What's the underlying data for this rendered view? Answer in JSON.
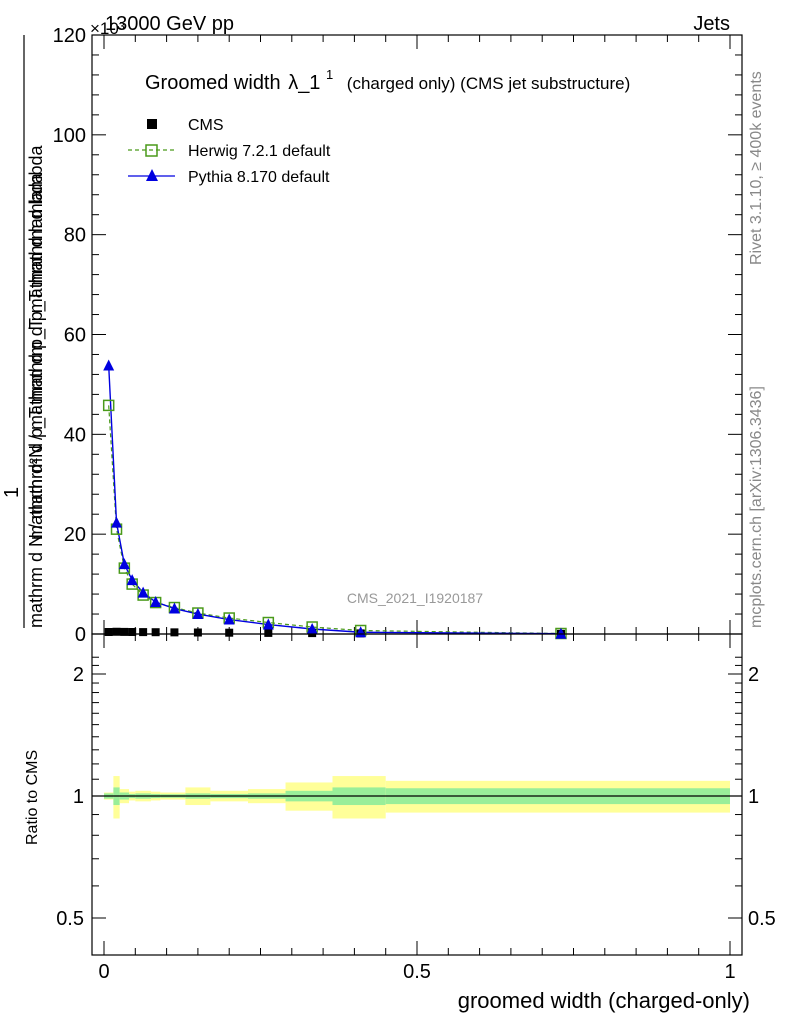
{
  "header": {
    "process": "13000 GeV pp",
    "category": "Jets",
    "exponent": "×10³"
  },
  "side_labels": {
    "rivet": "Rivet 3.1.10, ≥ 400k events",
    "mcplots": "mcplots.cern.ch [arXiv:1306.3436]"
  },
  "watermark": "CMS_2021_I1920187",
  "chart_data": [
    {
      "type": "line",
      "title": "Groomed width λ_1¹ (charged only) (CMS jet substructure)",
      "title_main": "Groomed width",
      "title_symbol": "λ_1",
      "title_sup": "1",
      "title_rest": "(charged only) (CMS jet substructure)",
      "ylabel": "1 / (mathrm d N / mathrm d p_T mathrm d p_T mathrm d lambda) · mathrm d²N",
      "ylabel_numerator": "mathrm d²N",
      "ylabel_denominator": "mathrm d p_T mathrm d lambda",
      "ylabel_one": "1",
      "ylabel_bottom": "mathrm d N / mathrm d p_T mathrm d p_T mathrm d lambda",
      "ylabel_top": "mathrm d²N / mathrm d p_T mathrm d lambda",
      "ylim": [
        0,
        120000
      ],
      "yticks": [
        0,
        20,
        40,
        60,
        80,
        100,
        120
      ],
      "xlim": [
        0,
        1
      ],
      "legend": [
        {
          "name": "CMS",
          "marker": "square-filled",
          "color": "#000000"
        },
        {
          "name": "Herwig 7.2.1 default",
          "marker": "square-open",
          "color": "#4a9a1a"
        },
        {
          "name": "Pythia 8.170 default",
          "marker": "triangle",
          "color": "#0000e0"
        }
      ],
      "x": [
        0.0075,
        0.02,
        0.0325,
        0.045,
        0.0625,
        0.0825,
        0.1125,
        0.15,
        0.2,
        0.2625,
        0.3325,
        0.41,
        0.73
      ],
      "series": [
        {
          "name": "CMS",
          "values": [
            400,
            450,
            420,
            400,
            380,
            360,
            330,
            300,
            260,
            220,
            180,
            120,
            30
          ]
        },
        {
          "name": "Herwig 7.2.1 default",
          "values": [
            45800,
            21000,
            13200,
            10000,
            7800,
            6300,
            5300,
            4200,
            3200,
            2300,
            1400,
            700,
            100
          ]
        },
        {
          "name": "Pythia 8.170 default",
          "values": [
            53800,
            22300,
            14000,
            10800,
            8300,
            6400,
            5100,
            4000,
            2900,
            1900,
            1000,
            350,
            60
          ]
        }
      ]
    },
    {
      "type": "area",
      "title": "",
      "ylabel": "Ratio to CMS",
      "xlabel": "groomed width (charged-only)",
      "ylim": [
        0.4,
        2.3
      ],
      "yticks": [
        0.5,
        1,
        2
      ],
      "xticks": [
        0,
        0.5,
        1
      ],
      "xtick_labels": [
        "0",
        "0.5",
        "1"
      ],
      "ytick_labels": [
        "0.5",
        "1",
        "2"
      ],
      "bin_edges": [
        0,
        0.015,
        0.025,
        0.04,
        0.05,
        0.075,
        0.09,
        0.13,
        0.17,
        0.23,
        0.29,
        0.365,
        0.45,
        1.0
      ],
      "stat_band": [
        0.015,
        0.05,
        0.02,
        0.012,
        0.015,
        0.012,
        0.01,
        0.015,
        0.012,
        0.015,
        0.03,
        0.05,
        0.045
      ],
      "total_band": [
        0.02,
        0.12,
        0.04,
        0.025,
        0.03,
        0.025,
        0.02,
        0.05,
        0.03,
        0.04,
        0.08,
        0.12,
        0.09
      ],
      "reference": 1.0
    }
  ]
}
